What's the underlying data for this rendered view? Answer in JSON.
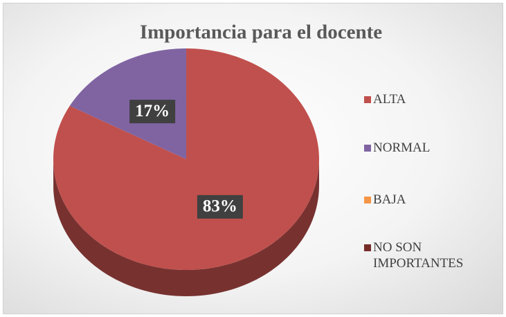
{
  "chart_data": {
    "type": "pie3d",
    "title": "Importancia para el docente",
    "categories": [
      "ALTA",
      "NORMAL",
      "BAJA",
      "NO SON IMPORTANTES"
    ],
    "values": [
      83,
      17,
      0,
      0
    ],
    "value_labels": [
      "83%",
      "17%",
      null,
      null
    ],
    "colors": [
      "#c0504d",
      "#8064a2",
      "#f79646",
      "#772c2a"
    ],
    "legend": "right"
  }
}
